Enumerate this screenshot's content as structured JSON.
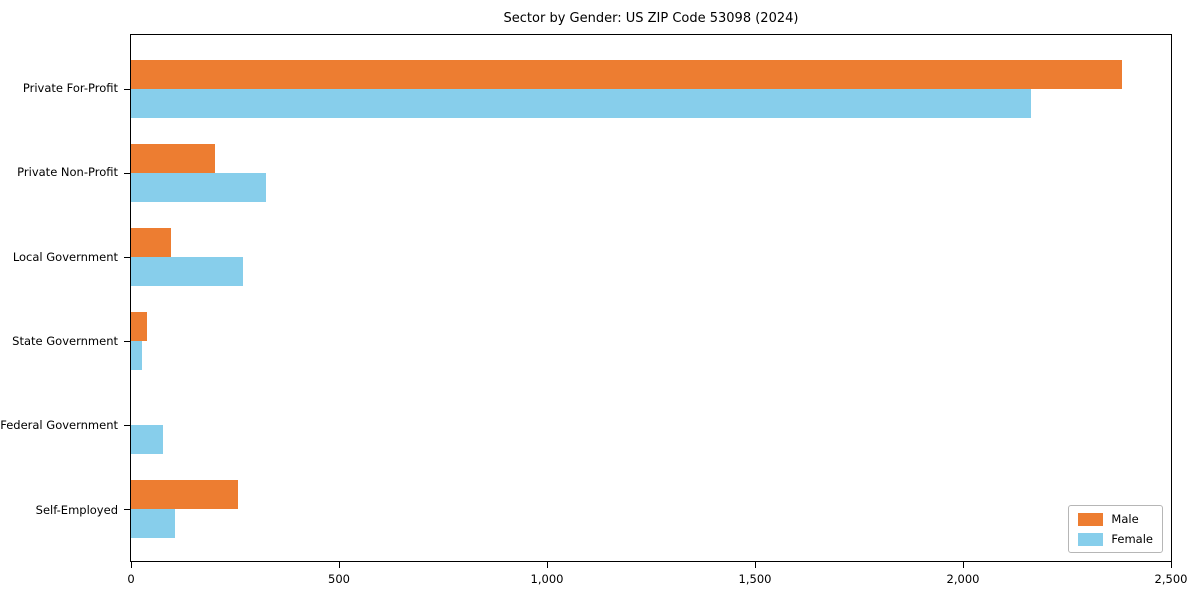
{
  "title": "Sector by Gender: US ZIP Code 53098 (2024)",
  "chart_data": {
    "type": "bar",
    "orientation": "horizontal",
    "title": "Sector by Gender: US ZIP Code 53098 (2024)",
    "categories": [
      "Private For-Profit",
      "Private Non-Profit",
      "Local Government",
      "State Government",
      "Federal Government",
      "Self-Employed"
    ],
    "series": [
      {
        "name": "Male",
        "color": "#ED7D31",
        "values": [
          2383,
          202,
          95,
          38,
          0,
          257
        ]
      },
      {
        "name": "Female",
        "color": "#87CEEB",
        "values": [
          2164,
          324,
          269,
          26,
          77,
          106
        ]
      }
    ],
    "xlabel": "",
    "ylabel": "",
    "xlim": [
      0,
      2500
    ],
    "xticks": [
      0,
      500,
      1000,
      1500,
      2000,
      2500
    ],
    "xtick_labels": [
      "0",
      "500",
      "1,000",
      "1,500",
      "2,000",
      "2,500"
    ],
    "grid": false,
    "legend": {
      "position": "lower right"
    },
    "colors": {
      "male": "#ED7D31",
      "female": "#87CEEB",
      "spine": "#000000",
      "background": "#ffffff"
    }
  }
}
